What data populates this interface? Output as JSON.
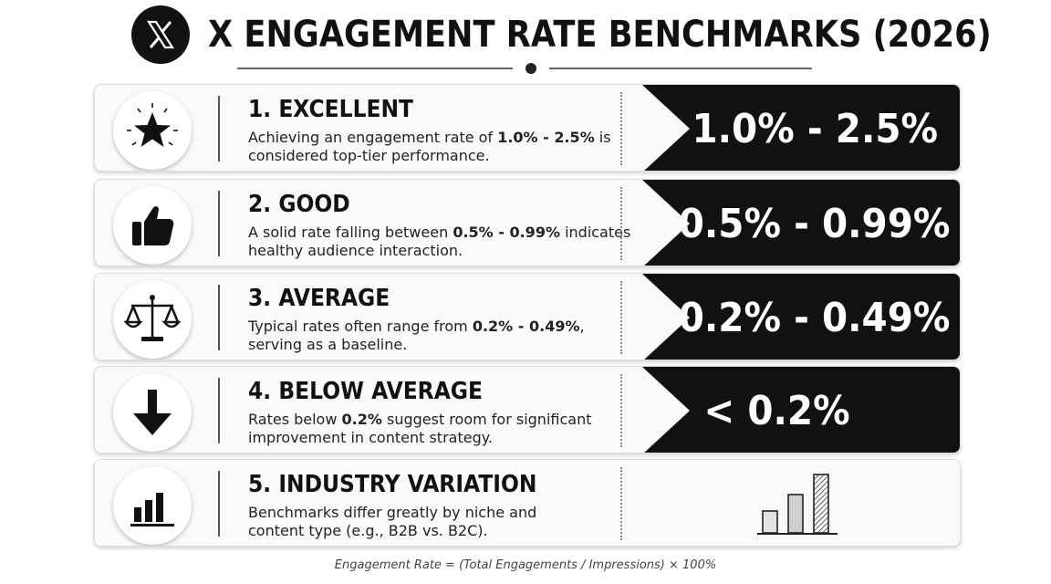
{
  "header": {
    "title": "X ENGAGEMENT RATE BENCHMARKS (2026)",
    "logo_icon": "x-logo-icon"
  },
  "tiers": [
    {
      "title": "1. EXCELLENT",
      "desc_before": "Achieving an engagement rate of ",
      "desc_bold": "1.0% - 2.5%",
      "desc_after": " is considered top-tier performance.",
      "value": "1.0% - 2.5%",
      "icon": "star-icon"
    },
    {
      "title": "2. GOOD",
      "desc_before": "A solid rate falling between ",
      "desc_bold": "0.5% - 0.99%",
      "desc_after": " indicates healthy audience interaction.",
      "value": "0.5% - 0.99%",
      "icon": "thumbs-up-icon"
    },
    {
      "title": "3. AVERAGE",
      "desc_before": "Typical rates often range from ",
      "desc_bold": "0.2% - 0.49%",
      "desc_after": ", serving as a baseline.",
      "value": "0.2% - 0.49%",
      "icon": "scales-icon"
    },
    {
      "title": "4. BELOW AVERAGE",
      "desc_before": "Rates below ",
      "desc_bold": "0.2%",
      "desc_after": " suggest room for significant improvement in content strategy.",
      "value": "< 0.2%",
      "icon": "arrow-down-icon"
    },
    {
      "title": "5. INDUSTRY VARIATION",
      "desc_before": "Benchmarks differ greatly by niche and content type (e.g., B2B vs. B2C).",
      "desc_bold": "",
      "desc_after": "",
      "icon": "bar-chart-icon",
      "side_icon": "bar-chart-illustration-icon"
    }
  ],
  "footer": {
    "formula": "Engagement Rate = (Total Engagements / Impressions) × 100%"
  },
  "colors": {
    "panel": "#111111",
    "card_bg": "#fafafa",
    "text": "#111111"
  }
}
